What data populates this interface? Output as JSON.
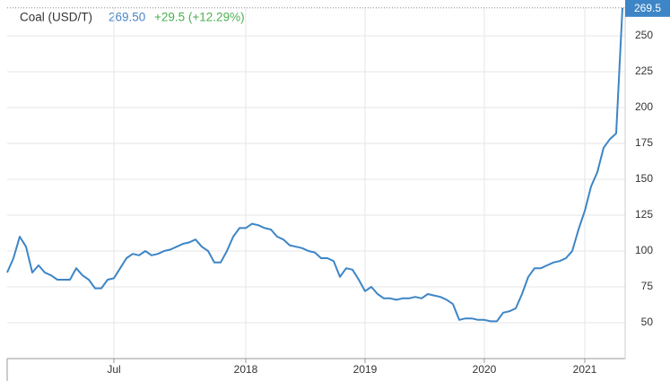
{
  "header": {
    "name": "Coal (USD/T)",
    "price": "269.50",
    "change": "+29.5 (+12.29%)"
  },
  "chart_data": {
    "type": "line",
    "categories": [
      null,
      null,
      null,
      null,
      null,
      null,
      null,
      null,
      null,
      null,
      null,
      null,
      null,
      null,
      null,
      null,
      null,
      "Jul",
      null,
      null,
      null,
      null,
      null,
      null,
      null,
      null,
      null,
      null,
      null,
      null,
      null,
      null,
      null,
      null,
      null,
      null,
      null,
      null,
      "2018",
      null,
      null,
      null,
      null,
      null,
      null,
      null,
      null,
      null,
      null,
      null,
      null,
      null,
      null,
      null,
      null,
      null,
      null,
      "2019",
      null,
      null,
      null,
      null,
      null,
      null,
      null,
      null,
      null,
      null,
      null,
      null,
      null,
      null,
      null,
      null,
      null,
      null,
      "2020",
      null,
      null,
      null,
      null,
      null,
      null,
      null,
      null,
      null,
      null,
      null,
      null,
      null,
      null,
      null,
      "2021",
      null,
      null,
      null,
      null,
      null,
      null
    ],
    "series": [
      {
        "name": "Coal (USD/T)",
        "color": "#3d85c6",
        "values": [
          85,
          95,
          110,
          103,
          85,
          90,
          85,
          83,
          80,
          80,
          80,
          88,
          83,
          80,
          74,
          74,
          80,
          81,
          88,
          95,
          98,
          97,
          100,
          97,
          98,
          100,
          101,
          103,
          105,
          106,
          108,
          103,
          100,
          92,
          92,
          100,
          110,
          116,
          116,
          119,
          118,
          116,
          115,
          110,
          108,
          104,
          103,
          102,
          100,
          99,
          95,
          95,
          93,
          82,
          88,
          87,
          80,
          72,
          75,
          70,
          67,
          67,
          66,
          67,
          67,
          68,
          67,
          70,
          69,
          68,
          66,
          63,
          52,
          53,
          53,
          52,
          52,
          51,
          51,
          57,
          58,
          60,
          70,
          82,
          88,
          88,
          90,
          92,
          93,
          95,
          100,
          115,
          128,
          145,
          155,
          172,
          178,
          182,
          269.5
        ]
      }
    ],
    "ylim": [
      25,
      270
    ],
    "yticks": [
      50,
      75,
      100,
      125,
      150,
      175,
      200,
      225,
      250
    ],
    "grid": true
  }
}
